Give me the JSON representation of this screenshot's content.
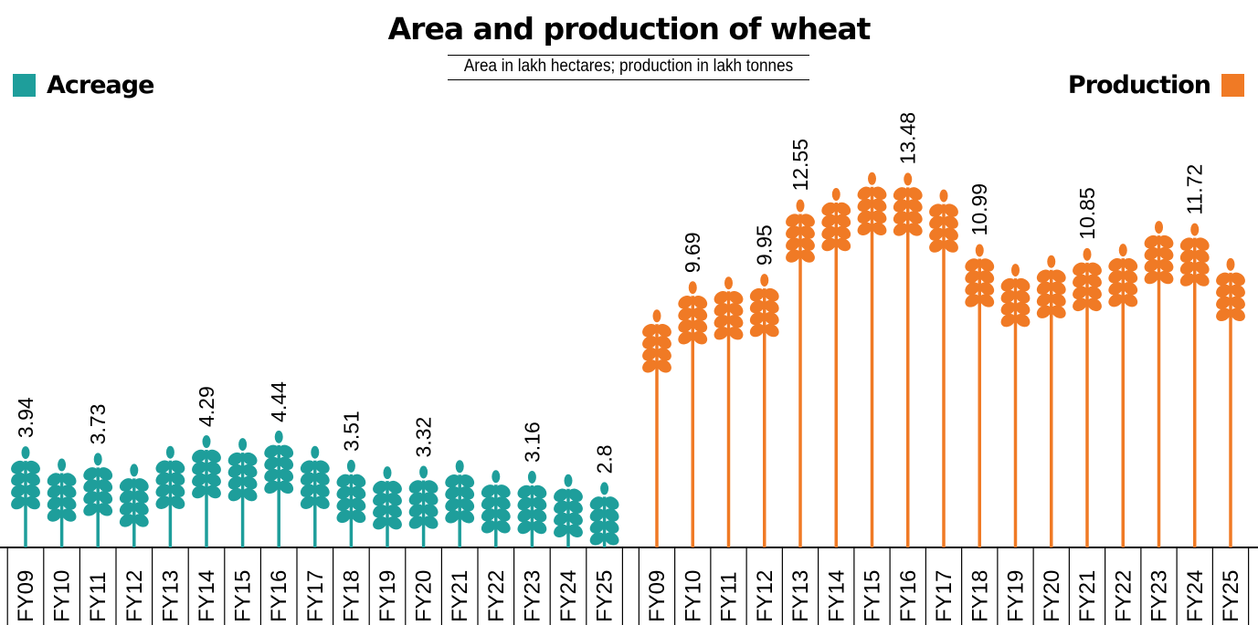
{
  "title": "Area and production of wheat",
  "subtitle": "Area in lakh hectares; production in lakh tonnes",
  "legend": {
    "acreage": {
      "label": "Acreage",
      "color": "#1e9e9b"
    },
    "production": {
      "label": "Production",
      "color": "#f07a25"
    }
  },
  "chart_data": [
    {
      "type": "bar",
      "glyph": "wheat-stalk",
      "name": "Acreage",
      "color": "#1e9e9b",
      "categories": [
        "FY09",
        "FY10",
        "FY11",
        "FY12",
        "FY13",
        "FY14",
        "FY15",
        "FY16",
        "FY17",
        "FY18",
        "FY19",
        "FY20",
        "FY21",
        "FY22",
        "FY23",
        "FY24",
        "FY25"
      ],
      "values": [
        3.94,
        3.55,
        3.73,
        3.38,
        3.95,
        4.29,
        4.2,
        4.44,
        3.95,
        3.51,
        3.3,
        3.32,
        3.5,
        3.18,
        3.16,
        3.05,
        2.8
      ],
      "value_labels": [
        "3.94",
        "",
        "3.73",
        "",
        "",
        "4.29",
        "",
        "4.44",
        "",
        "3.51",
        "",
        "3.32",
        "",
        "",
        "3.16",
        "",
        "2.8"
      ]
    },
    {
      "type": "bar",
      "glyph": "wheat-stalk",
      "name": "Production",
      "color": "#f07a25",
      "categories": [
        "FY09",
        "FY10",
        "FY11",
        "FY12",
        "FY13",
        "FY14",
        "FY15",
        "FY16",
        "FY17",
        "FY18",
        "FY19",
        "FY20",
        "FY21",
        "FY22",
        "FY23",
        "FY24",
        "FY25"
      ],
      "values": [
        8.7,
        9.69,
        9.85,
        9.95,
        12.55,
        12.95,
        13.5,
        13.48,
        12.9,
        10.99,
        10.3,
        10.6,
        10.85,
        11.0,
        11.8,
        11.72,
        10.5
      ],
      "value_labels": [
        "",
        "9.69",
        "",
        "9.95",
        "12.55",
        "",
        "",
        "13.48",
        "",
        "10.99",
        "",
        "",
        "10.85",
        "",
        "",
        "11.72",
        ""
      ]
    }
  ]
}
